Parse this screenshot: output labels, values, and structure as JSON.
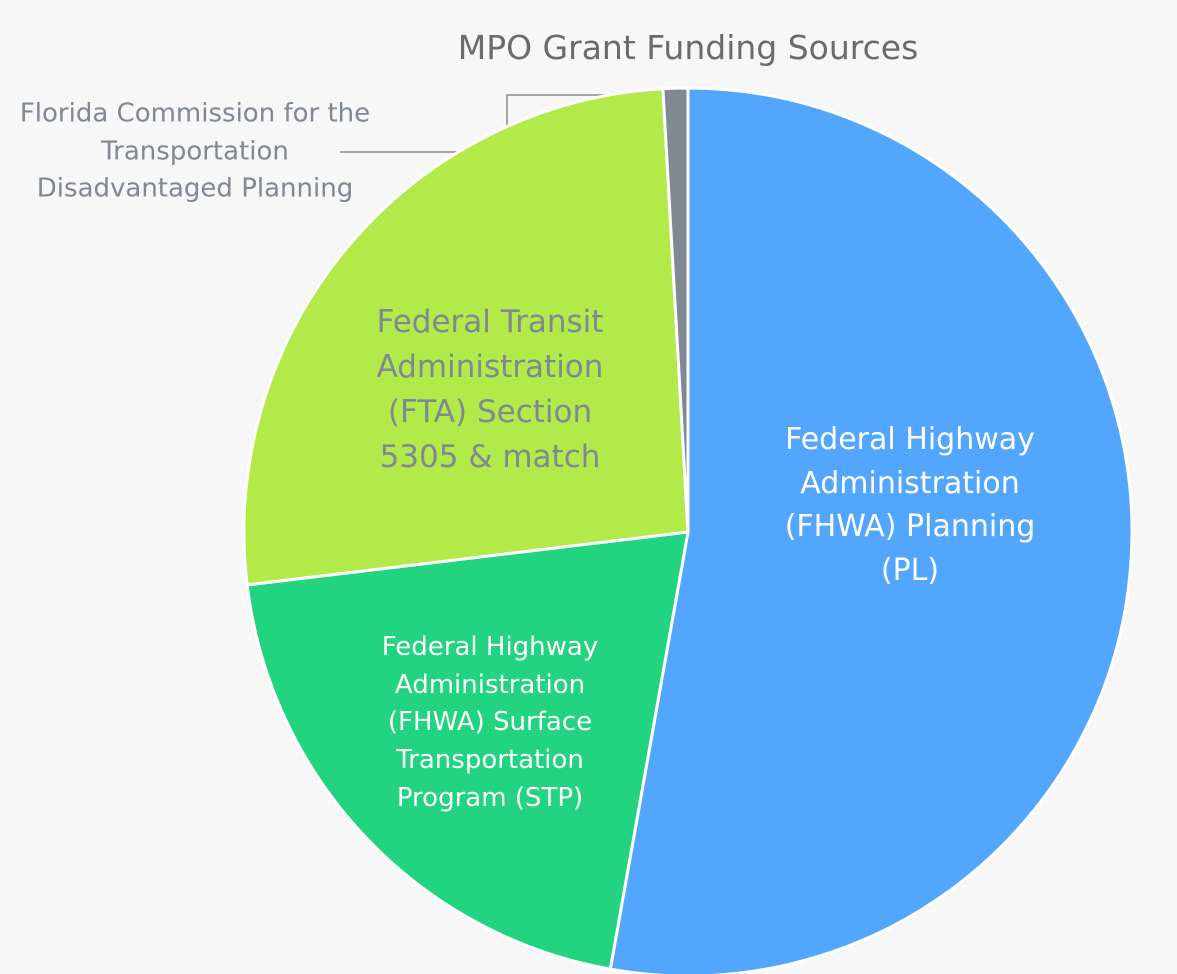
{
  "chart_data": {
    "type": "pie",
    "title": "MPO Grant Funding Sources",
    "categories": [
      "Federal Highway Administration (FHWA) Planning (PL)",
      "Federal Highway Administration (FHWA) Surface Transportation Program (STP)",
      "Federal Transit Administration (FTA) Section 5305 & match",
      "Florida Commission for the Transportation Disadvantaged Planning"
    ],
    "values": [
      52.8,
      20.3,
      26.0,
      0.9
    ],
    "colors": [
      "#52a6fd",
      "#22d47f",
      "#b2ea4a",
      "#7f8893"
    ]
  }
}
